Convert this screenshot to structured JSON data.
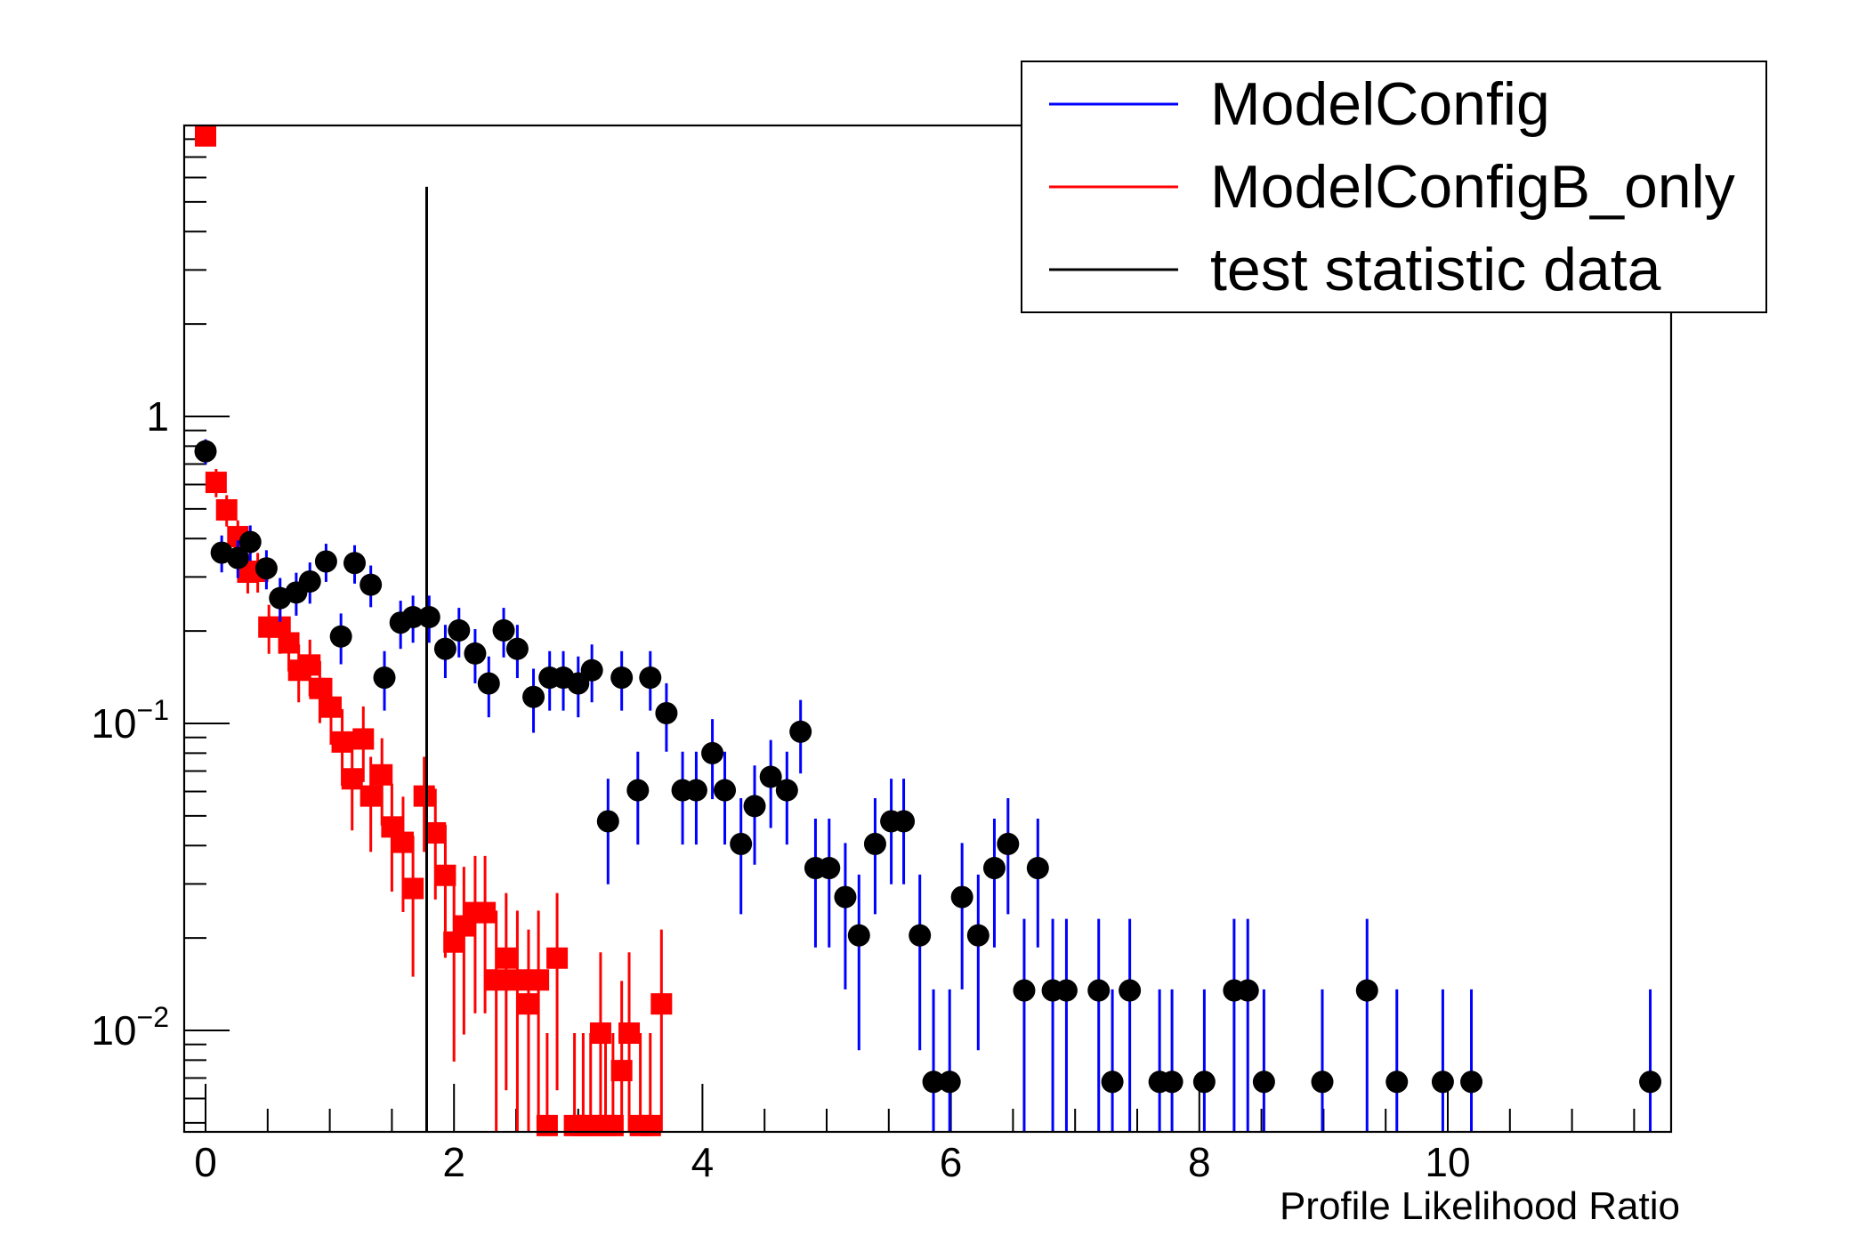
{
  "chart_data": {
    "type": "scatter",
    "title": "",
    "xlabel": "Profile Likelihood Ratio",
    "ylabel": "",
    "xlim": [
      -0.17,
      11.8
    ],
    "ylim": [
      0.00468,
      8.87
    ],
    "yscale": "log",
    "grid": false,
    "x_ticks": [
      0,
      2,
      4,
      6,
      8,
      10
    ],
    "x_tick_labels": [
      "0",
      "2",
      "4",
      "6",
      "8",
      "10"
    ],
    "y_ticks": [
      1,
      0.1,
      0.01
    ],
    "y_tick_labels": [
      {
        "base": "1",
        "exp": ""
      },
      {
        "base": "10",
        "exp": "−1"
      },
      {
        "base": "10",
        "exp": "−2"
      }
    ],
    "legend": {
      "placement": "top-right",
      "entries": [
        {
          "label": "ModelConfig",
          "color": "#0000ff"
        },
        {
          "label": "ModelConfigB_only",
          "color": "#ff0000"
        },
        {
          "label": "test statistic data",
          "color": "#000000"
        }
      ]
    },
    "test_statistic_line": {
      "x": 1.78,
      "y_top": 5.6,
      "color": "#000000"
    },
    "series": [
      {
        "name": "ModelConfig",
        "marker": "circle",
        "marker_color": "#000000",
        "error_color": "#0000ff",
        "points": [
          {
            "x": 0.0,
            "y": 0.77
          },
          {
            "x": 0.13,
            "y": 0.36
          },
          {
            "x": 0.26,
            "y": 0.346
          },
          {
            "x": 0.36,
            "y": 0.39
          },
          {
            "x": 0.49,
            "y": 0.32
          },
          {
            "x": 0.6,
            "y": 0.256
          },
          {
            "x": 0.73,
            "y": 0.267
          },
          {
            "x": 0.84,
            "y": 0.29
          },
          {
            "x": 0.97,
            "y": 0.337
          },
          {
            "x": 1.09,
            "y": 0.192
          },
          {
            "x": 1.2,
            "y": 0.333
          },
          {
            "x": 1.33,
            "y": 0.283
          },
          {
            "x": 1.44,
            "y": 0.141
          },
          {
            "x": 1.57,
            "y": 0.213
          },
          {
            "x": 1.67,
            "y": 0.222
          },
          {
            "x": 1.8,
            "y": 0.222
          },
          {
            "x": 1.93,
            "y": 0.175
          },
          {
            "x": 2.04,
            "y": 0.201
          },
          {
            "x": 2.17,
            "y": 0.169
          },
          {
            "x": 2.28,
            "y": 0.135
          },
          {
            "x": 2.4,
            "y": 0.201
          },
          {
            "x": 2.51,
            "y": 0.175
          },
          {
            "x": 2.64,
            "y": 0.122
          },
          {
            "x": 2.77,
            "y": 0.141
          },
          {
            "x": 2.88,
            "y": 0.141
          },
          {
            "x": 3.0,
            "y": 0.135
          },
          {
            "x": 3.11,
            "y": 0.149
          },
          {
            "x": 3.24,
            "y": 0.048
          },
          {
            "x": 3.35,
            "y": 0.141
          },
          {
            "x": 3.48,
            "y": 0.0606
          },
          {
            "x": 3.58,
            "y": 0.141
          },
          {
            "x": 3.71,
            "y": 0.108
          },
          {
            "x": 3.84,
            "y": 0.0606
          },
          {
            "x": 3.95,
            "y": 0.0606
          },
          {
            "x": 4.08,
            "y": 0.08
          },
          {
            "x": 4.18,
            "y": 0.0606
          },
          {
            "x": 4.31,
            "y": 0.0405
          },
          {
            "x": 4.42,
            "y": 0.0538
          },
          {
            "x": 4.55,
            "y": 0.067
          },
          {
            "x": 4.68,
            "y": 0.0606
          },
          {
            "x": 4.79,
            "y": 0.094
          },
          {
            "x": 4.91,
            "y": 0.0338
          },
          {
            "x": 5.02,
            "y": 0.0338
          },
          {
            "x": 5.15,
            "y": 0.0272
          },
          {
            "x": 5.26,
            "y": 0.0204
          },
          {
            "x": 5.39,
            "y": 0.0405
          },
          {
            "x": 5.52,
            "y": 0.048
          },
          {
            "x": 5.62,
            "y": 0.048
          },
          {
            "x": 5.75,
            "y": 0.0204
          },
          {
            "x": 5.86,
            "y": 0.0068
          },
          {
            "x": 5.99,
            "y": 0.0068
          },
          {
            "x": 6.09,
            "y": 0.0272
          },
          {
            "x": 6.22,
            "y": 0.0204
          },
          {
            "x": 6.35,
            "y": 0.0338
          },
          {
            "x": 6.46,
            "y": 0.0405
          },
          {
            "x": 6.59,
            "y": 0.0135
          },
          {
            "x": 6.7,
            "y": 0.0338
          },
          {
            "x": 6.82,
            "y": 0.0135
          },
          {
            "x": 6.93,
            "y": 0.0135
          },
          {
            "x": 7.19,
            "y": 0.0135
          },
          {
            "x": 7.3,
            "y": 0.0068
          },
          {
            "x": 7.44,
            "y": 0.0135
          },
          {
            "x": 7.68,
            "y": 0.0068
          },
          {
            "x": 7.78,
            "y": 0.0068
          },
          {
            "x": 8.04,
            "y": 0.0068
          },
          {
            "x": 8.28,
            "y": 0.0135
          },
          {
            "x": 8.39,
            "y": 0.0135
          },
          {
            "x": 8.52,
            "y": 0.0068
          },
          {
            "x": 8.99,
            "y": 0.0068
          },
          {
            "x": 9.35,
            "y": 0.0135
          },
          {
            "x": 9.59,
            "y": 0.0068
          },
          {
            "x": 9.96,
            "y": 0.0068
          },
          {
            "x": 10.19,
            "y": 0.0068
          },
          {
            "x": 11.63,
            "y": 0.0068
          }
        ]
      },
      {
        "name": "ModelConfigB_only",
        "marker": "square",
        "marker_color": "#ff0000",
        "error_color": "#ff0000",
        "points": [
          {
            "x": 0.0,
            "y": 8.2
          },
          {
            "x": 0.085,
            "y": 0.61
          },
          {
            "x": 0.17,
            "y": 0.496
          },
          {
            "x": 0.26,
            "y": 0.406
          },
          {
            "x": 0.34,
            "y": 0.311
          },
          {
            "x": 0.42,
            "y": 0.313
          },
          {
            "x": 0.51,
            "y": 0.206
          },
          {
            "x": 0.6,
            "y": 0.206
          },
          {
            "x": 0.67,
            "y": 0.183
          },
          {
            "x": 0.75,
            "y": 0.149
          },
          {
            "x": 0.84,
            "y": 0.155
          },
          {
            "x": 0.92,
            "y": 0.13
          },
          {
            "x": 1.01,
            "y": 0.113
          },
          {
            "x": 1.1,
            "y": 0.087
          },
          {
            "x": 1.18,
            "y": 0.066
          },
          {
            "x": 1.27,
            "y": 0.089
          },
          {
            "x": 1.33,
            "y": 0.058
          },
          {
            "x": 1.42,
            "y": 0.068
          },
          {
            "x": 1.5,
            "y": 0.046
          },
          {
            "x": 1.59,
            "y": 0.041
          },
          {
            "x": 1.67,
            "y": 0.029
          },
          {
            "x": 1.76,
            "y": 0.058
          },
          {
            "x": 1.85,
            "y": 0.044
          },
          {
            "x": 1.93,
            "y": 0.032
          },
          {
            "x": 2.0,
            "y": 0.0194
          },
          {
            "x": 2.08,
            "y": 0.0219
          },
          {
            "x": 2.17,
            "y": 0.0242
          },
          {
            "x": 2.25,
            "y": 0.0242
          },
          {
            "x": 2.34,
            "y": 0.0146
          },
          {
            "x": 2.42,
            "y": 0.0172
          },
          {
            "x": 2.51,
            "y": 0.0146
          },
          {
            "x": 2.6,
            "y": 0.0122
          },
          {
            "x": 2.68,
            "y": 0.0146
          },
          {
            "x": 2.75,
            "y": 0.0049
          },
          {
            "x": 2.83,
            "y": 0.0172
          },
          {
            "x": 2.97,
            "y": 0.0049
          },
          {
            "x": 3.04,
            "y": 0.0049
          },
          {
            "x": 3.1,
            "y": 0.0049
          },
          {
            "x": 3.18,
            "y": 0.0098
          },
          {
            "x": 3.22,
            "y": 0.0049
          },
          {
            "x": 3.28,
            "y": 0.0049
          },
          {
            "x": 3.35,
            "y": 0.0074
          },
          {
            "x": 3.41,
            "y": 0.0098
          },
          {
            "x": 3.5,
            "y": 0.0049
          },
          {
            "x": 3.58,
            "y": 0.0049
          },
          {
            "x": 3.67,
            "y": 0.0122
          }
        ]
      }
    ]
  }
}
